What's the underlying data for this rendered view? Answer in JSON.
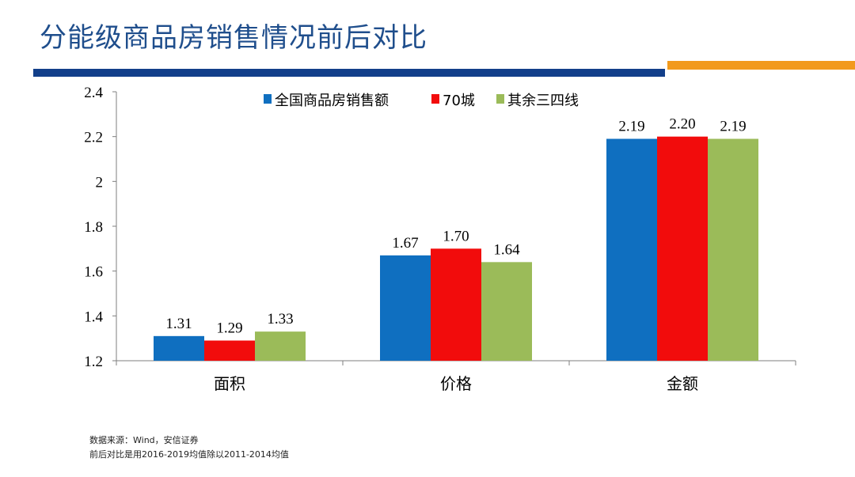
{
  "page": {
    "title": "分能级商品房销售情况前后对比",
    "accent_blue": "#123f8a",
    "accent_orange": "#f29a1d"
  },
  "chart_data": {
    "type": "bar",
    "categories": [
      "面积",
      "价格",
      "金额"
    ],
    "series": [
      {
        "name": "全国商品房销售额",
        "color": "#0f6fc0",
        "values": [
          1.31,
          1.67,
          2.19
        ],
        "labels": [
          "1.31",
          "1.67",
          "2.19"
        ]
      },
      {
        "name": "70城",
        "color": "#f20c0c",
        "values": [
          1.29,
          1.7,
          2.2
        ],
        "labels": [
          "1.29",
          "1.70",
          "2.20"
        ]
      },
      {
        "name": "其余三四线",
        "color": "#9bbb59",
        "values": [
          1.33,
          1.64,
          2.19
        ],
        "labels": [
          "1.33",
          "1.64",
          "2.19"
        ]
      }
    ],
    "yticks": [
      "1.2",
      "1.4",
      "1.6",
      "1.8",
      "2",
      "2.2",
      "2.4"
    ],
    "ylim": [
      1.2,
      2.4
    ],
    "legend_position": "top",
    "grid": false
  },
  "footnote": {
    "source": "数据来源：Wind，安信证券",
    "note": "前后对比是用2016-2019均值除以2011-2014均值"
  }
}
